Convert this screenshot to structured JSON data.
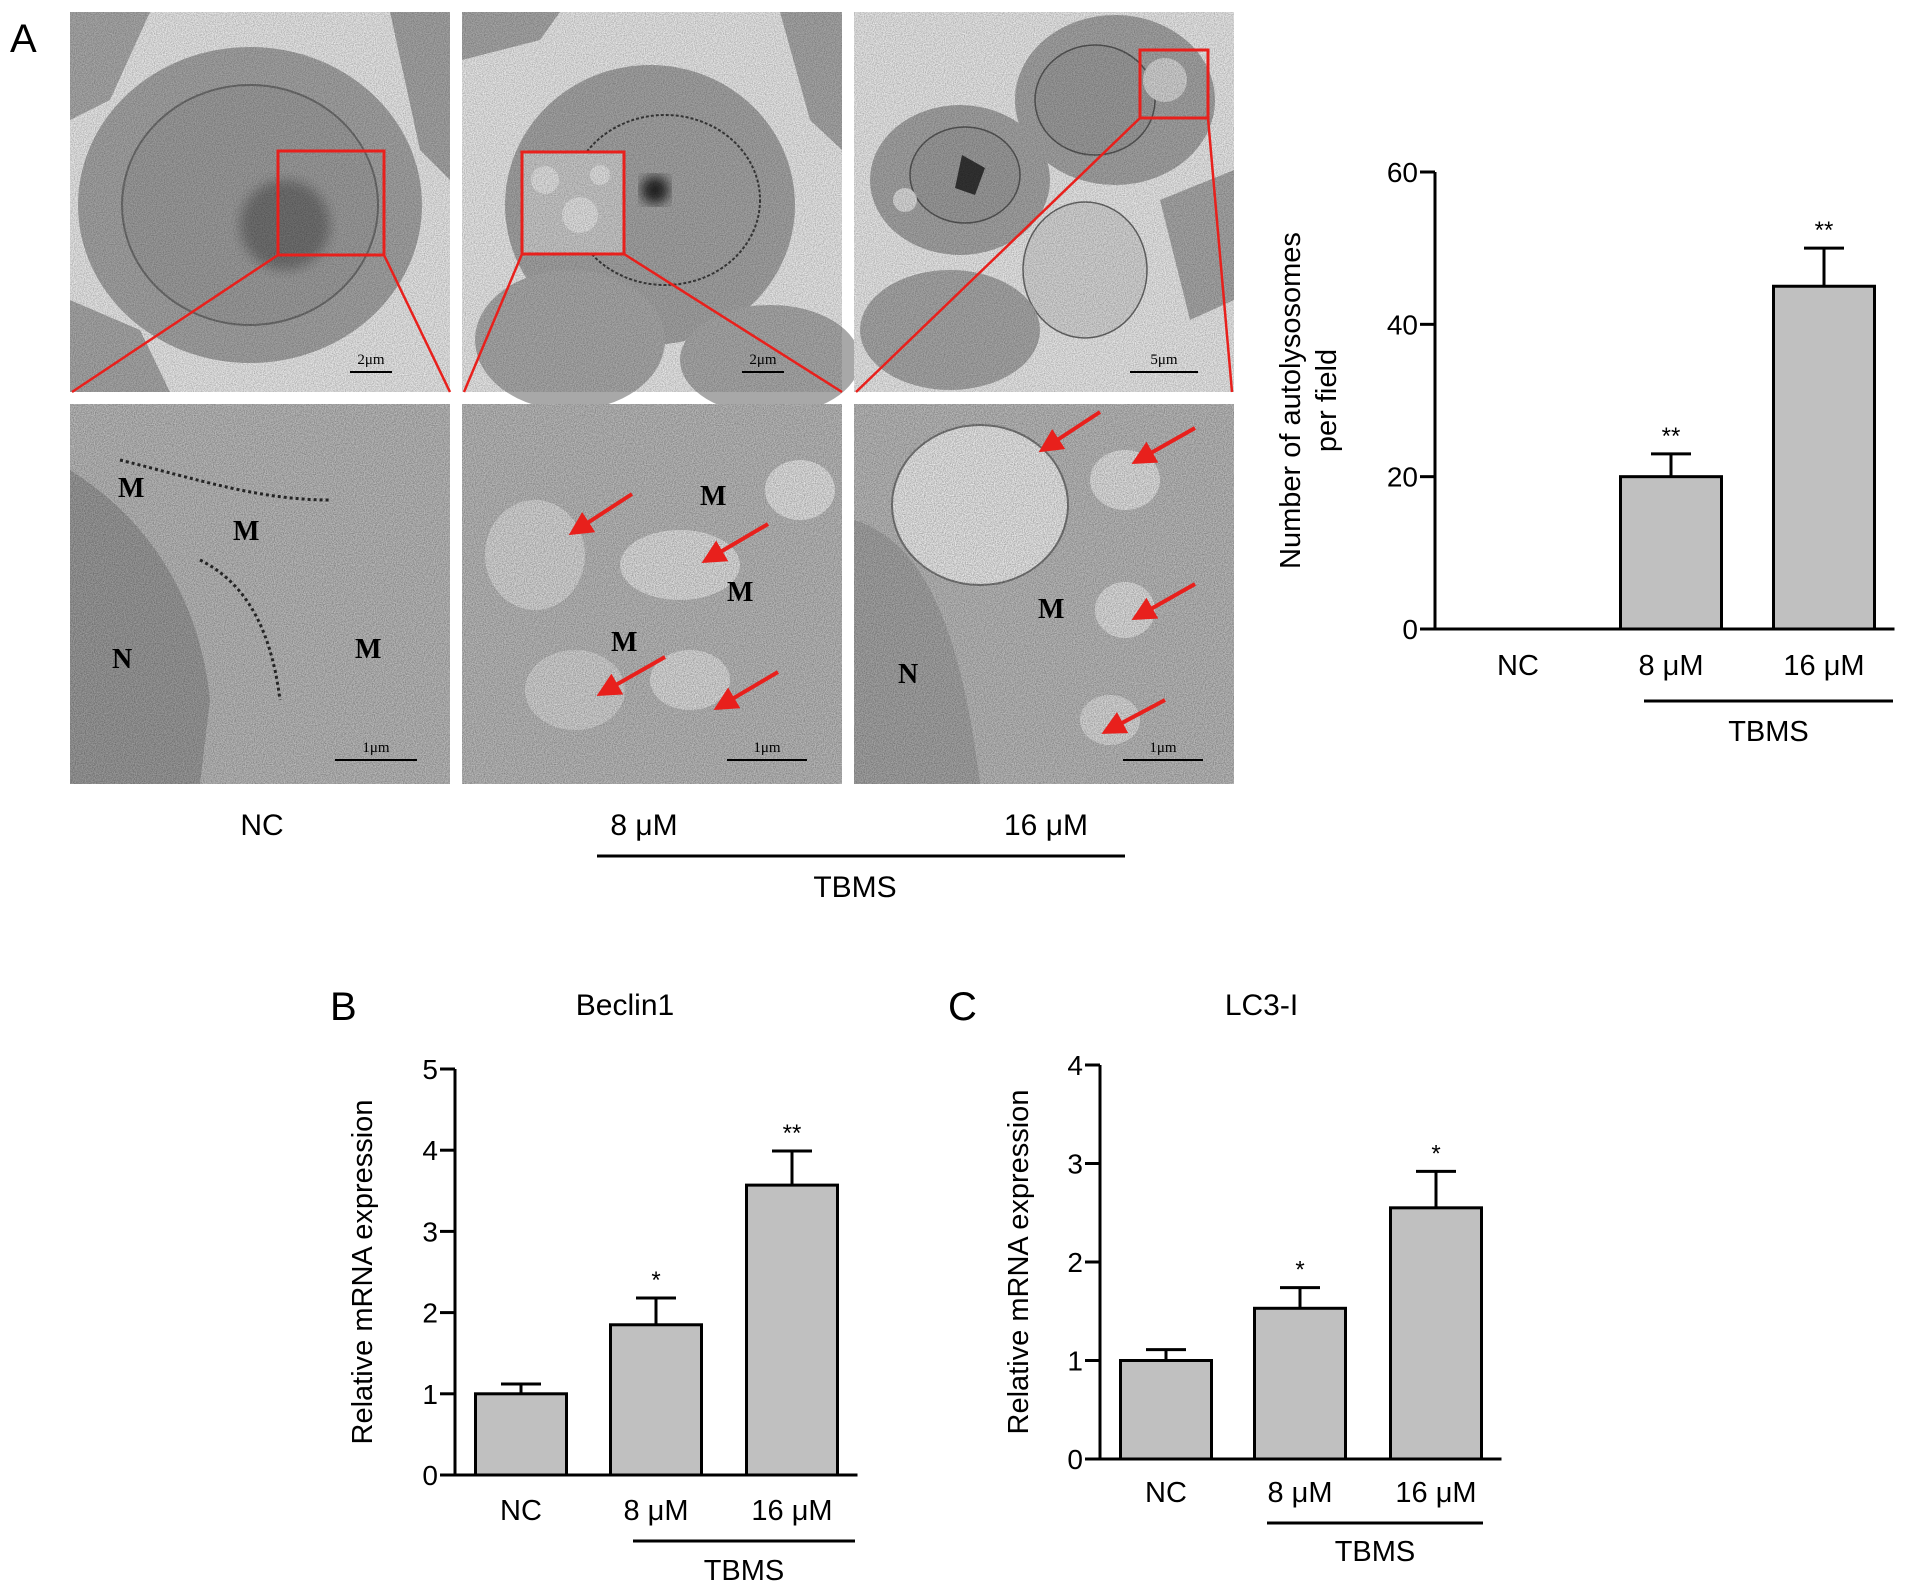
{
  "panel_a": {
    "letter": "A",
    "group_labels": [
      "NC",
      "8 μM",
      "16 μM"
    ],
    "treatment_label": "TBMS",
    "scale_bars_top": [
      "2μm",
      "2μm",
      "5μm"
    ],
    "scale_bars_bottom": [
      "1μm",
      "1μm",
      "1μm"
    ],
    "micrograph_labels": {
      "nc": [
        "M",
        "M",
        "M",
        "N"
      ],
      "mid": [
        "M",
        "M",
        "M"
      ],
      "high": [
        "M",
        "N"
      ]
    },
    "colors": {
      "zoom_box": "#e8201c",
      "arrow": "#e8201c"
    }
  },
  "panel_b": {
    "letter": "B"
  },
  "panel_c": {
    "letter": "C"
  },
  "chart_data": [
    {
      "id": "autolysosomes",
      "type": "bar",
      "title": "",
      "ylabel_lines": [
        "Number of autolysosomes",
        "per field"
      ],
      "categories": [
        "NC",
        "8 μM",
        "16 μM"
      ],
      "values": [
        0,
        20,
        45
      ],
      "errors": [
        0,
        3,
        5
      ],
      "significance": [
        "",
        "**",
        "**"
      ],
      "ylim": [
        0,
        60
      ],
      "yticks": [
        0,
        20,
        40,
        60
      ],
      "group_label": "TBMS",
      "bar_color": "#c0c0c0"
    },
    {
      "id": "beclin1",
      "type": "bar",
      "title": "Beclin1",
      "ylabel_lines": [
        "Relative mRNA expression"
      ],
      "categories": [
        "NC",
        "8 μM",
        "16 μM"
      ],
      "values": [
        1.0,
        1.85,
        3.57
      ],
      "errors": [
        0.12,
        0.33,
        0.42
      ],
      "significance": [
        "",
        "*",
        "**"
      ],
      "ylim": [
        0,
        5
      ],
      "yticks": [
        0,
        1,
        2,
        3,
        4,
        5
      ],
      "group_label": "TBMS",
      "bar_color": "#c0c0c0"
    },
    {
      "id": "lc3",
      "type": "bar",
      "title": "LC3-I",
      "ylabel_lines": [
        "Relative mRNA expression"
      ],
      "categories": [
        "NC",
        "8 μM",
        "16 μM"
      ],
      "values": [
        1.0,
        1.53,
        2.55
      ],
      "errors": [
        0.11,
        0.21,
        0.37
      ],
      "significance": [
        "",
        "*",
        "*"
      ],
      "ylim": [
        0,
        4
      ],
      "yticks": [
        0,
        1,
        2,
        3,
        4
      ],
      "group_label": "TBMS",
      "bar_color": "#c0c0c0"
    }
  ]
}
